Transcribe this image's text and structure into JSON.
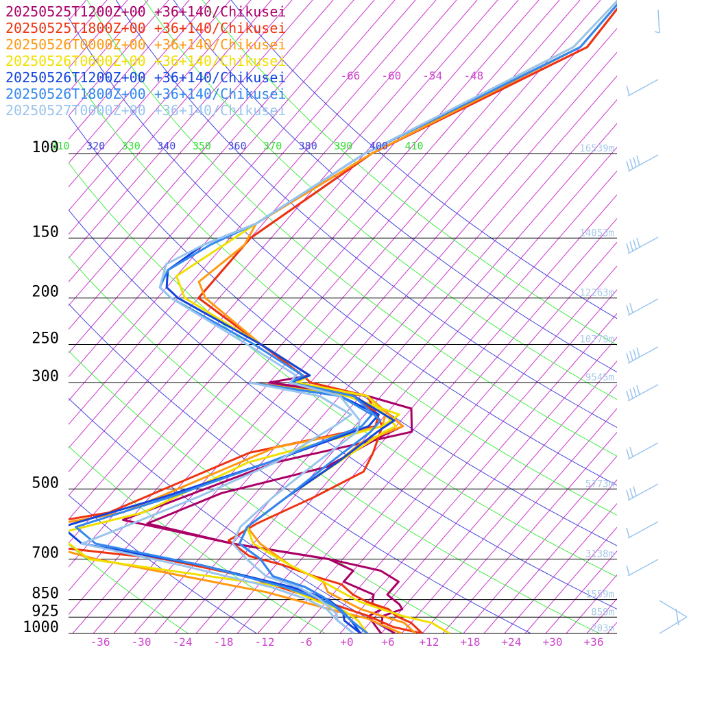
{
  "chart_data": {
    "type": "line",
    "title": "",
    "xlabel": "",
    "ylabel": "",
    "x_ticks": [
      "-36",
      "-30",
      "-24",
      "-18",
      "-12",
      "-6",
      "+0",
      "+6",
      "+12",
      "+18",
      "+24",
      "+30",
      "+36"
    ],
    "x_tick_values": [
      -36,
      -30,
      -24,
      -18,
      -12,
      -6,
      0,
      6,
      12,
      18,
      24,
      30,
      36
    ],
    "pressure_levels": [
      100,
      150,
      200,
      250,
      300,
      500,
      700,
      850,
      925,
      1000
    ],
    "pressure_labels": [
      "100",
      "150",
      "200",
      "250",
      "300",
      "500",
      "700",
      "850",
      "925",
      "1000"
    ],
    "height_labels": [
      {
        "p": 100,
        "text": "16539m"
      },
      {
        "p": 150,
        "text": "14053m"
      },
      {
        "p": 200,
        "text": "12263m"
      },
      {
        "p": 250,
        "text": "10779m"
      },
      {
        "p": 300,
        "text": "9545m"
      },
      {
        "p": 500,
        "text": "5773m"
      },
      {
        "p": 700,
        "text": "3138m"
      },
      {
        "p": 850,
        "text": "1559m"
      },
      {
        "p": 925,
        "text": "859m"
      },
      {
        "p": 1000,
        "text": "203m"
      }
    ],
    "upper_temp_labels": [
      {
        "t": -66,
        "text": "-66"
      },
      {
        "t": -60,
        "text": "-60"
      },
      {
        "t": -54,
        "text": "-54"
      },
      {
        "t": -48,
        "text": "-48"
      }
    ],
    "theta_labels": [
      {
        "text": "310",
        "color": "#33dd33"
      },
      {
        "text": "320",
        "color": "#4444dd"
      },
      {
        "text": "330",
        "color": "#33dd33"
      },
      {
        "text": "340",
        "color": "#4444dd"
      },
      {
        "text": "350",
        "color": "#33dd33"
      },
      {
        "text": "360",
        "color": "#4444dd"
      },
      {
        "text": "370",
        "color": "#33dd33"
      },
      {
        "text": "380",
        "color": "#4444dd"
      },
      {
        "text": "390",
        "color": "#33dd33"
      },
      {
        "text": "400",
        "color": "#4444dd"
      },
      {
        "text": "410",
        "color": "#33dd33"
      }
    ],
    "series": [
      {
        "name": "20250525T1200Z+00 +36+140/Chikusei",
        "color": "#aa0066",
        "points": [
          [
            -40,
            40
          ],
          [
            -39,
            60
          ],
          [
            -57,
            100
          ],
          [
            -64,
            150
          ],
          [
            -64,
            200
          ],
          [
            -49,
            250
          ],
          [
            -38,
            290
          ],
          [
            -43,
            300
          ],
          [
            -27,
            320
          ],
          [
            -18,
            370
          ],
          [
            -20,
            390
          ],
          [
            -24,
            450
          ],
          [
            -36,
            510
          ],
          [
            -43,
            590
          ],
          [
            -28,
            650
          ],
          [
            -12,
            700
          ],
          [
            -3,
            740
          ],
          [
            1,
            780
          ],
          [
            1,
            830
          ],
          [
            4,
            870
          ],
          [
            5,
            890
          ],
          [
            3,
            920
          ],
          [
            4,
            960
          ],
          [
            7,
            1000
          ]
        ],
        "dew": [
          [
            -46,
            300
          ],
          [
            -27,
            320
          ],
          [
            -19,
            340
          ],
          [
            -16,
            380
          ],
          [
            -32,
            440
          ],
          [
            -47,
            580
          ],
          [
            -28,
            650
          ],
          [
            -12,
            700
          ],
          [
            -7,
            740
          ],
          [
            -7,
            780
          ],
          [
            -1,
            830
          ],
          [
            0,
            870
          ],
          [
            2,
            890
          ],
          [
            1,
            920
          ],
          [
            3,
            960
          ],
          [
            5,
            1000
          ]
        ]
      },
      {
        "name": "20250525T1800Z+00 +36+140/Chikusei",
        "color": "#ee3311",
        "points": [
          [
            -40,
            40
          ],
          [
            -39,
            60
          ],
          [
            -57,
            100
          ],
          [
            -64,
            150
          ],
          [
            -64,
            200
          ],
          [
            -49,
            250
          ],
          [
            -39,
            290
          ],
          [
            -37,
            300
          ],
          [
            -27,
            320
          ],
          [
            -21,
            370
          ],
          [
            -19,
            420
          ],
          [
            -18,
            460
          ],
          [
            -22,
            520
          ],
          [
            -27,
            590
          ],
          [
            -29,
            640
          ],
          [
            -24,
            690
          ],
          [
            -18,
            720
          ],
          [
            -12,
            760
          ],
          [
            -7,
            790
          ],
          [
            -4,
            830
          ],
          [
            -1,
            860
          ],
          [
            3,
            890
          ],
          [
            5,
            920
          ],
          [
            8,
            950
          ],
          [
            11,
            1000
          ]
        ],
        "dew": [
          [
            -46,
            300
          ],
          [
            -29,
            320
          ],
          [
            -23,
            350
          ],
          [
            -22,
            370
          ],
          [
            -37,
            420
          ],
          [
            -50,
            560
          ],
          [
            -68,
            630
          ],
          [
            -36,
            700
          ],
          [
            -22,
            760
          ],
          [
            -7,
            860
          ],
          [
            1,
            920
          ],
          [
            6,
            970
          ],
          [
            11,
            1000
          ]
        ]
      },
      {
        "name": "20250526T0000Z+00 +36+140/Chikusei",
        "color": "#ff9911",
        "points": [
          [
            -40,
            40
          ],
          [
            -40,
            60
          ],
          [
            -57,
            100
          ],
          [
            -65,
            140
          ],
          [
            -64,
            155
          ],
          [
            -66,
            185
          ],
          [
            -63,
            200
          ],
          [
            -49,
            250
          ],
          [
            -38,
            290
          ],
          [
            -40,
            300
          ],
          [
            -27,
            320
          ],
          [
            -18,
            370
          ],
          [
            -22,
            400
          ],
          [
            -23,
            440
          ],
          [
            -26,
            520
          ],
          [
            -28,
            600
          ],
          [
            -24,
            650
          ],
          [
            -17,
            720
          ],
          [
            -10,
            780
          ],
          [
            -8,
            820
          ],
          [
            -4,
            860
          ],
          [
            -1,
            890
          ],
          [
            3,
            920
          ],
          [
            7,
            950
          ],
          [
            10,
            1000
          ]
        ],
        "dew": [
          [
            -46,
            300
          ],
          [
            -29,
            320
          ],
          [
            -22,
            350
          ],
          [
            -21,
            370
          ],
          [
            -34,
            410
          ],
          [
            -48,
            560
          ],
          [
            -63,
            620
          ],
          [
            -46,
            700
          ],
          [
            -17,
            820
          ],
          [
            -4,
            900
          ],
          [
            1,
            930
          ],
          [
            5,
            970
          ],
          [
            8,
            1000
          ]
        ]
      },
      {
        "name": "20250526T0600Z+00 +36+140/Chikusei",
        "color": "#f0e000",
        "points": [
          [
            -40,
            40
          ],
          [
            -41,
            60
          ],
          [
            -58,
            100
          ],
          [
            -65,
            140
          ],
          [
            -67,
            155
          ],
          [
            -70,
            180
          ],
          [
            -66,
            200
          ],
          [
            -49,
            250
          ],
          [
            -38,
            290
          ],
          [
            -39,
            300
          ],
          [
            -27,
            320
          ],
          [
            -19,
            370
          ],
          [
            -20,
            380
          ],
          [
            -22,
            420
          ],
          [
            -26,
            520
          ],
          [
            -28,
            600
          ],
          [
            -25,
            650
          ],
          [
            -17,
            720
          ],
          [
            -10,
            780
          ],
          [
            -6,
            820
          ],
          [
            -2,
            860
          ],
          [
            2,
            890
          ],
          [
            6,
            920
          ],
          [
            11,
            950
          ],
          [
            15,
            1000
          ]
        ],
        "dew": [
          [
            -46,
            300
          ],
          [
            -30,
            320
          ],
          [
            -20,
            350
          ],
          [
            -21,
            370
          ],
          [
            -36,
            440
          ],
          [
            -45,
            560
          ],
          [
            -55,
            620
          ],
          [
            -47,
            700
          ],
          [
            -15,
            800
          ],
          [
            -8,
            860
          ],
          [
            -3,
            900
          ],
          [
            0,
            940
          ],
          [
            3,
            1000
          ]
        ]
      },
      {
        "name": "20250526T1200Z+00 +36+140/Chikusei",
        "color": "#1144dd",
        "points": [
          [
            -40,
            40
          ],
          [
            -40,
            60
          ],
          [
            -58,
            100
          ],
          [
            -65,
            140
          ],
          [
            -70,
            155
          ],
          [
            -72,
            175
          ],
          [
            -70,
            190
          ],
          [
            -67,
            200
          ],
          [
            -49,
            250
          ],
          [
            -38,
            290
          ],
          [
            -40,
            300
          ],
          [
            -29,
            320
          ],
          [
            -20,
            360
          ],
          [
            -21,
            380
          ],
          [
            -23,
            440
          ],
          [
            -26,
            520
          ],
          [
            -28,
            600
          ],
          [
            -27,
            650
          ],
          [
            -22,
            700
          ],
          [
            -18,
            760
          ],
          [
            -12,
            800
          ],
          [
            -8,
            840
          ],
          [
            -5,
            880
          ],
          [
            -3,
            910
          ],
          [
            -2,
            940
          ],
          [
            2,
            1000
          ]
        ],
        "dew": [
          [
            -46,
            300
          ],
          [
            -31,
            320
          ],
          [
            -23,
            350
          ],
          [
            -23,
            370
          ],
          [
            -33,
            440
          ],
          [
            -44,
            520
          ],
          [
            -55,
            600
          ],
          [
            -50,
            650
          ],
          [
            -30,
            720
          ],
          [
            -14,
            800
          ],
          [
            -7,
            850
          ],
          [
            -4,
            890
          ],
          [
            -1,
            940
          ],
          [
            2,
            1000
          ]
        ]
      },
      {
        "name": "20250526T1800Z+00 +36+140/Chikusei",
        "color": "#3388ee",
        "points": [
          [
            -40,
            40
          ],
          [
            -40,
            60
          ],
          [
            -58,
            100
          ],
          [
            -65,
            140
          ],
          [
            -69,
            155
          ],
          [
            -72,
            175
          ],
          [
            -71,
            190
          ],
          [
            -68,
            200
          ],
          [
            -50,
            250
          ],
          [
            -39,
            290
          ],
          [
            -40,
            300
          ],
          [
            -29,
            320
          ],
          [
            -22,
            360
          ],
          [
            -22,
            380
          ],
          [
            -24,
            440
          ],
          [
            -26,
            520
          ],
          [
            -28,
            600
          ],
          [
            -27,
            650
          ],
          [
            -22,
            700
          ],
          [
            -18,
            760
          ],
          [
            -12,
            800
          ],
          [
            -8,
            840
          ],
          [
            -5,
            880
          ],
          [
            -3,
            910
          ],
          [
            -1,
            940
          ],
          [
            3,
            1000
          ]
        ],
        "dew": [
          [
            -46,
            300
          ],
          [
            -31,
            320
          ],
          [
            -24,
            350
          ],
          [
            -24,
            370
          ],
          [
            -33,
            440
          ],
          [
            -43,
            520
          ],
          [
            -53,
            600
          ],
          [
            -48,
            650
          ],
          [
            -30,
            720
          ],
          [
            -15,
            800
          ],
          [
            -8,
            850
          ],
          [
            -4,
            890
          ],
          [
            -1,
            940
          ],
          [
            3,
            1000
          ]
        ]
      },
      {
        "name": "20250527T0000Z+00 +36+140/Chikusei",
        "color": "#99c4ee",
        "points": [
          [
            -40,
            40
          ],
          [
            -41,
            60
          ],
          [
            -58,
            100
          ],
          [
            -65,
            140
          ],
          [
            -70,
            155
          ],
          [
            -73,
            170
          ],
          [
            -71,
            190
          ],
          [
            -68,
            200
          ],
          [
            -51,
            250
          ],
          [
            -40,
            290
          ],
          [
            -40,
            300
          ],
          [
            -31,
            320
          ],
          [
            -25,
            360
          ],
          [
            -24,
            380
          ],
          [
            -26,
            440
          ],
          [
            -28,
            520
          ],
          [
            -29,
            600
          ],
          [
            -28,
            650
          ],
          [
            -24,
            700
          ],
          [
            -19,
            760
          ],
          [
            -13,
            800
          ],
          [
            -9,
            840
          ],
          [
            -6,
            880
          ],
          [
            -4,
            910
          ],
          [
            -3,
            940
          ],
          [
            1,
            1000
          ]
        ],
        "dew": [
          [
            -46,
            300
          ],
          [
            -34,
            320
          ],
          [
            -27,
            350
          ],
          [
            -28,
            370
          ],
          [
            -32,
            440
          ],
          [
            -39,
            520
          ],
          [
            -46,
            600
          ],
          [
            -50,
            650
          ],
          [
            -33,
            720
          ],
          [
            -17,
            800
          ],
          [
            -10,
            850
          ],
          [
            -6,
            890
          ],
          [
            -3,
            940
          ],
          [
            1,
            1000
          ]
        ]
      }
    ]
  }
}
